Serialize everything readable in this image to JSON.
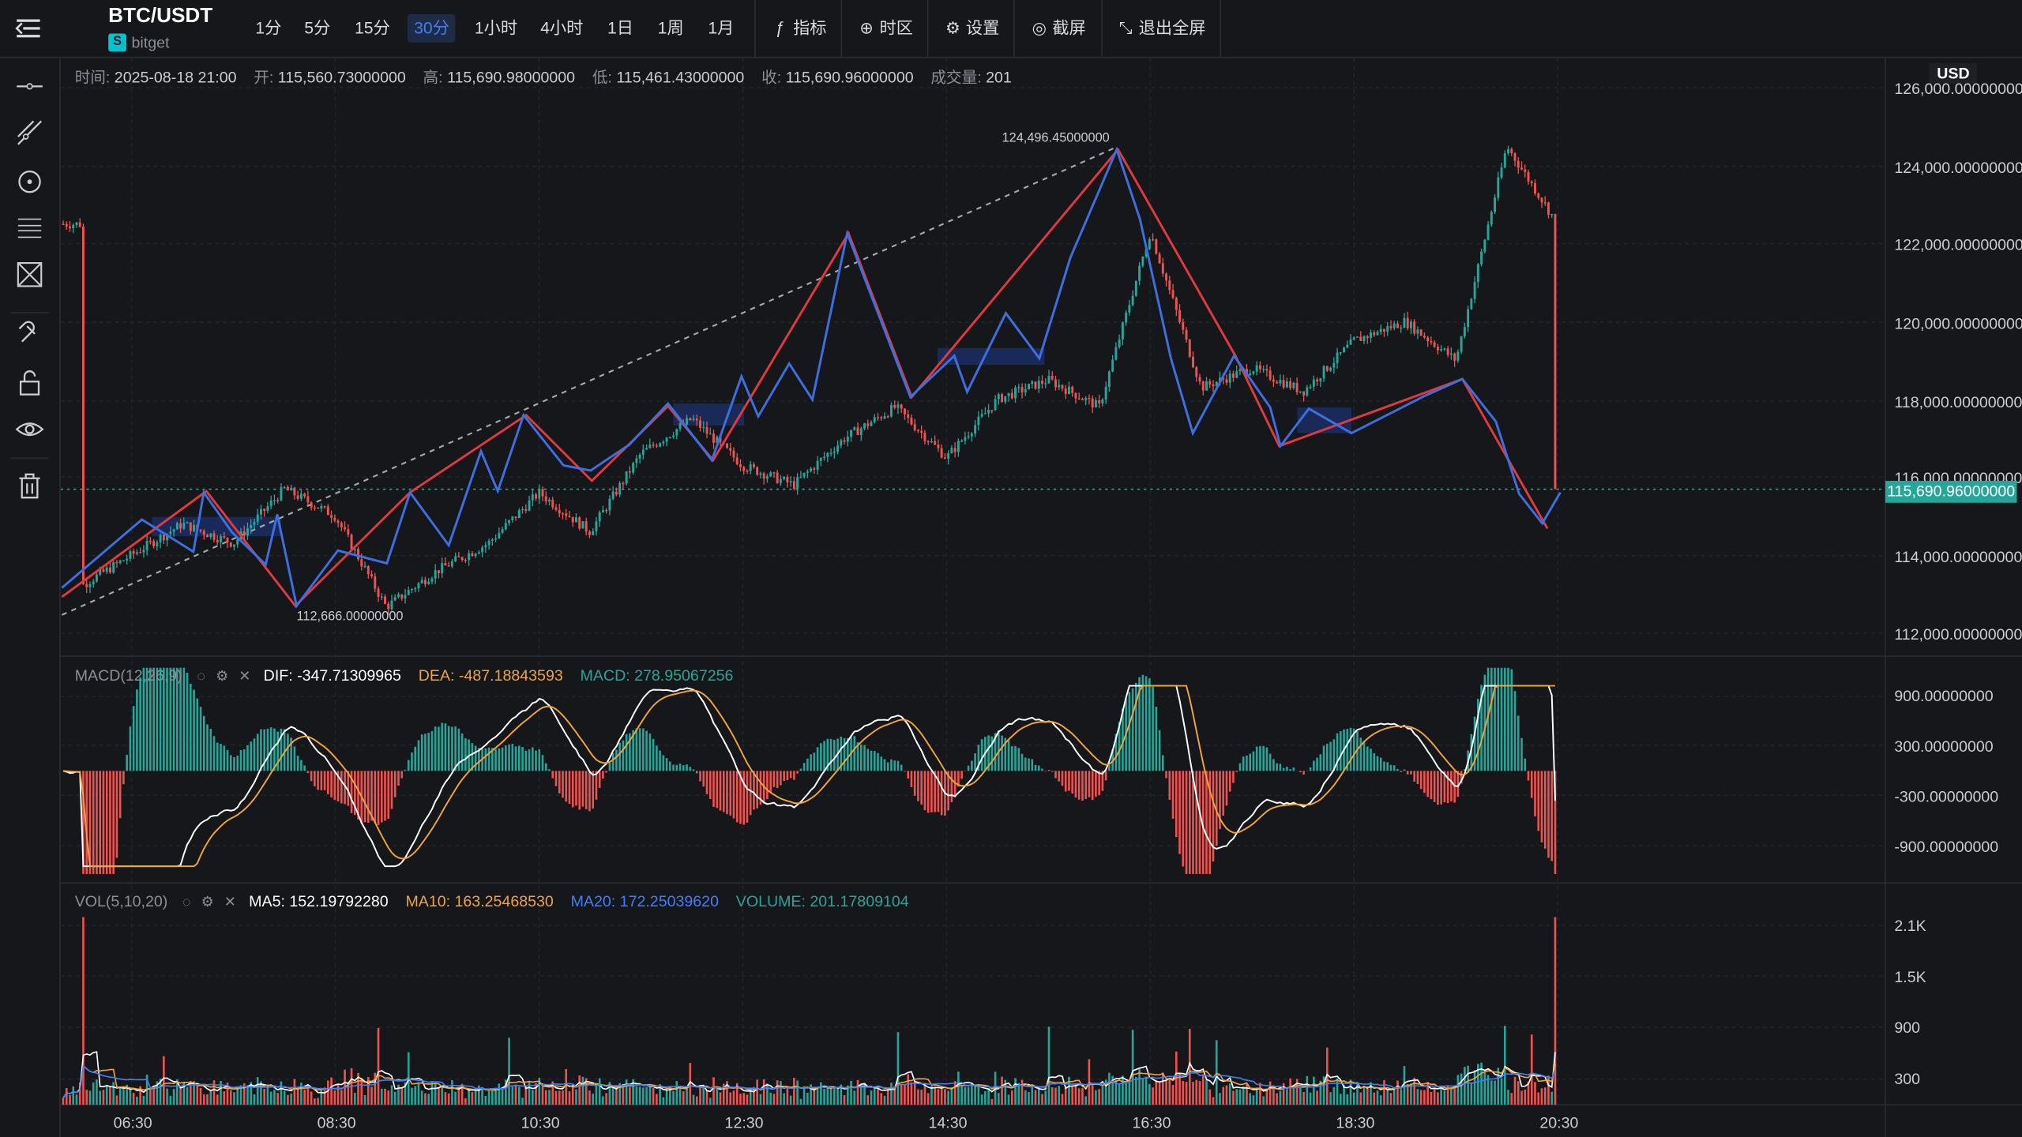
{
  "header": {
    "symbol": "BTC/USDT",
    "exchange": "bitget",
    "timeframes": [
      {
        "label": "1分",
        "active": false
      },
      {
        "label": "5分",
        "active": false
      },
      {
        "label": "15分",
        "active": false
      },
      {
        "label": "30分",
        "active": true
      },
      {
        "label": "1小时",
        "active": false
      },
      {
        "label": "4小时",
        "active": false
      },
      {
        "label": "1日",
        "active": false
      },
      {
        "label": "1周",
        "active": false
      },
      {
        "label": "1月",
        "active": false
      }
    ],
    "tools": {
      "indicators": "指标",
      "timezone": "时区",
      "settings": "设置",
      "screenshot": "截屏",
      "exit_fullscreen": "退出全屏"
    }
  },
  "ohlc": {
    "time_label": "时间:",
    "time": "2025-08-18 21:00",
    "open_label": "开:",
    "open": "115,560.73000000",
    "high_label": "高:",
    "high": "115,690.98000000",
    "low_label": "低:",
    "low": "115,461.43000000",
    "close_label": "收:",
    "close": "115,690.96000000",
    "volume_label": "成交量:",
    "volume": "201"
  },
  "price_axis": {
    "currency": "USD",
    "ticks": [
      "126,000.00000000",
      "124,000.00000000",
      "122,000.00000000",
      "120,000.00000000",
      "118,000.00000000",
      "116,000.00000000",
      "114,000.00000000",
      "112,000.00000000"
    ],
    "last_price": "115,690.96000000"
  },
  "annotations": {
    "high_marker": "124,496.45000000",
    "low_marker": "112,666.00000000"
  },
  "macd": {
    "title": "MACD(12,26,9)",
    "dif": "DIF: -347.71309965",
    "dea": "DEA: -487.18843593",
    "macd": "MACD: 278.95067256",
    "ticks": [
      "900.00000000",
      "300.00000000",
      "-300.00000000",
      "-900.00000000"
    ]
  },
  "vol": {
    "title": "VOL(5,10,20)",
    "ma5": "MA5: 152.19792280",
    "ma10": "MA10: 163.25468530",
    "ma20": "MA20: 172.25039620",
    "volume": "VOLUME: 201.17809104",
    "ticks": [
      "2.1K",
      "1.5K",
      "900",
      "300"
    ]
  },
  "time_axis": [
    "06:30",
    "08:30",
    "10:30",
    "12:30",
    "14:30",
    "16:30",
    "18:30",
    "20:30"
  ],
  "colors": {
    "up": "#26a69a",
    "down": "#ef5350",
    "zigzag_red": "#e0393e",
    "zigzag_blue": "#3d6fe0",
    "accent": "#3d7fff",
    "dif": "#ffffff",
    "dea": "#f0a43b"
  },
  "chart_data": {
    "type": "candlestick",
    "price_anchors": [
      {
        "t": "06:00",
        "price": 113200
      },
      {
        "t": "07:00",
        "price": 114800
      },
      {
        "t": "07:30",
        "price": 114300
      },
      {
        "t": "08:00",
        "price": 115700
      },
      {
        "t": "08:30",
        "price": 115000
      },
      {
        "t": "09:00",
        "price": 112666
      },
      {
        "t": "09:30",
        "price": 113600
      },
      {
        "t": "10:00",
        "price": 114300
      },
      {
        "t": "10:30",
        "price": 115600
      },
      {
        "t": "11:00",
        "price": 114600
      },
      {
        "t": "11:30",
        "price": 116600
      },
      {
        "t": "12:00",
        "price": 117500
      },
      {
        "t": "12:30",
        "price": 116300
      },
      {
        "t": "13:00",
        "price": 115800
      },
      {
        "t": "13:30",
        "price": 117000
      },
      {
        "t": "14:00",
        "price": 117800
      },
      {
        "t": "14:30",
        "price": 116500
      },
      {
        "t": "15:00",
        "price": 118000
      },
      {
        "t": "15:30",
        "price": 118500
      },
      {
        "t": "16:00",
        "price": 117800
      },
      {
        "t": "16:30",
        "price": 122300
      },
      {
        "t": "17:00",
        "price": 118300
      },
      {
        "t": "17:30",
        "price": 118800
      },
      {
        "t": "18:00",
        "price": 118200
      },
      {
        "t": "18:30",
        "price": 119500
      },
      {
        "t": "19:00",
        "price": 120000
      },
      {
        "t": "19:30",
        "price": 119000
      },
      {
        "t": "20:00",
        "price": 124496
      },
      {
        "t": "20:30",
        "price": 122500
      }
    ],
    "high": 124496.45,
    "low": 112666.0,
    "last": 115690.96,
    "ylim": [
      111500,
      126200
    ]
  }
}
